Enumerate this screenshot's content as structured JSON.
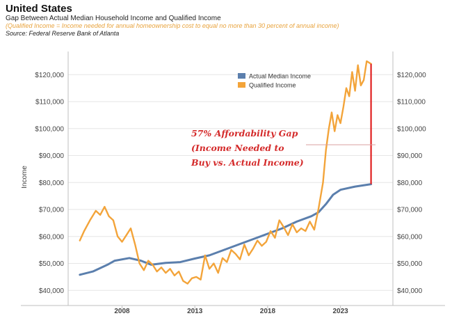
{
  "header": {
    "title": "United States",
    "subtitle": "Gap Between Actual Median Household Income and Qualified Income",
    "note": "(Qualified Income = Income needed for annual homeownership cost to equal no more than 30 percent of annual income)",
    "source": "Source: Federal Reserve Bank of Atlanta"
  },
  "colors": {
    "actual": "#5b7fad",
    "qualified": "#f3a43a",
    "gap": "#e02020",
    "grid": "#e6e6e6",
    "axis": "#bfbfbf"
  },
  "chart_data": {
    "type": "line",
    "title": "Gap Between Actual Median Household Income and Qualified Income",
    "ylabel": "Income",
    "xlabel": "",
    "ylim": [
      38000,
      126000
    ],
    "xlim": [
      2004.3,
      2026.6
    ],
    "yticks": [
      40000,
      50000,
      60000,
      70000,
      80000,
      90000,
      100000,
      110000,
      120000
    ],
    "ytick_labels": [
      "$40,000",
      "$50,000",
      "$60,000",
      "$70,000",
      "$80,000",
      "$90,000",
      "$100,000",
      "$110,000",
      "$120,000"
    ],
    "xticks": [
      2008,
      2013,
      2018,
      2023
    ],
    "xtick_labels": [
      "2008",
      "2013",
      "2018",
      "2023"
    ],
    "legend": [
      "Actual Median Income",
      "Qualified Income"
    ],
    "series": [
      {
        "name": "Actual Median Income",
        "x": [
          2005.1,
          2006,
          2007,
          2007.5,
          2008.5,
          2009.3,
          2010,
          2011,
          2012,
          2013,
          2014,
          2015,
          2016,
          2017,
          2018,
          2019,
          2020,
          2021,
          2021.5,
          2022,
          2022.5,
          2023,
          2024,
          2025.1
        ],
        "values": [
          45800,
          47000,
          49500,
          51000,
          52000,
          51000,
          49500,
          50200,
          50500,
          51800,
          53000,
          55000,
          57000,
          59000,
          61000,
          63000,
          65500,
          67500,
          69000,
          72000,
          75500,
          77300,
          78500,
          79400
        ]
      },
      {
        "name": "Qualified Income",
        "x": [
          2005.1,
          2005.4,
          2005.8,
          2006.2,
          2006.5,
          2006.8,
          2007.1,
          2007.4,
          2007.7,
          2008,
          2008.3,
          2008.6,
          2008.9,
          2009.2,
          2009.5,
          2009.8,
          2010.1,
          2010.4,
          2010.7,
          2011,
          2011.3,
          2011.6,
          2011.9,
          2012.2,
          2012.5,
          2012.8,
          2013.1,
          2013.4,
          2013.7,
          2014,
          2014.3,
          2014.6,
          2014.9,
          2015.2,
          2015.5,
          2015.8,
          2016.1,
          2016.4,
          2016.7,
          2017,
          2017.3,
          2017.6,
          2017.9,
          2018.2,
          2018.5,
          2018.8,
          2019.1,
          2019.4,
          2019.7,
          2020,
          2020.3,
          2020.6,
          2020.9,
          2021.2,
          2021.5,
          2021.8,
          2022,
          2022.2,
          2022.4,
          2022.6,
          2022.8,
          2023,
          2023.2,
          2023.4,
          2023.6,
          2023.8,
          2024,
          2024.2,
          2024.4,
          2024.6,
          2024.8,
          2025.1
        ],
        "values": [
          58500,
          62000,
          66000,
          69500,
          68000,
          71000,
          67500,
          66000,
          60000,
          58000,
          60500,
          63000,
          57000,
          50000,
          47500,
          51000,
          49500,
          47000,
          48500,
          46500,
          48000,
          45500,
          47000,
          43500,
          42500,
          44500,
          45000,
          44000,
          53000,
          48000,
          50000,
          46500,
          52000,
          50500,
          55000,
          53500,
          51500,
          57000,
          53000,
          55500,
          58500,
          56500,
          58000,
          62000,
          59500,
          66000,
          63500,
          60500,
          64500,
          61500,
          63000,
          62000,
          65500,
          62500,
          70500,
          80000,
          92000,
          100000,
          106000,
          99000,
          105000,
          102000,
          108000,
          115000,
          112000,
          121000,
          114000,
          123500,
          116000,
          118000,
          125000,
          124000
        ]
      }
    ],
    "annotation": {
      "lines": [
        "57% Affordability Gap",
        "(Income Needed to",
        "Buy vs. Actual Income)"
      ],
      "gap_x": 2025.1,
      "gap_from": 79400,
      "gap_to": 124000
    }
  }
}
